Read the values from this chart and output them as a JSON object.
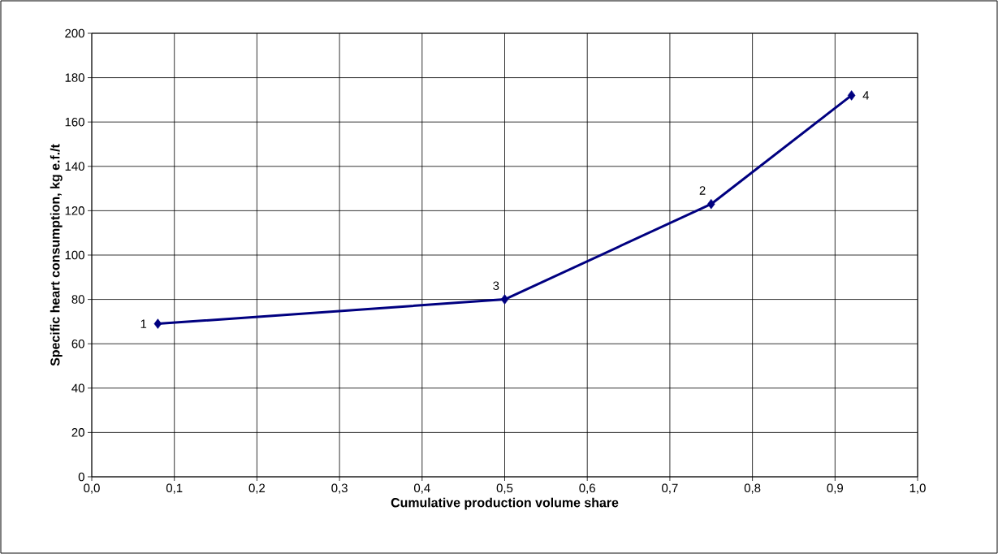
{
  "chart_data": {
    "type": "line",
    "xlabel": "Cumulative production volume share",
    "ylabel": "Specific heart consumption, kg e.f./t",
    "x": [
      0.08,
      0.5,
      0.75,
      0.92
    ],
    "series": [
      {
        "color": "#000080",
        "values": [
          69,
          80,
          123,
          172
        ]
      }
    ],
    "xlim": [
      0,
      1
    ],
    "xticks": [
      {
        "value": 0,
        "label": "0,0"
      },
      {
        "value": 0.1,
        "label": "0,1"
      },
      {
        "value": 0.2,
        "label": "0,2"
      },
      {
        "value": 0.3,
        "label": "0,3"
      },
      {
        "value": 0.4,
        "label": "0,4"
      },
      {
        "value": 0.5,
        "label": "0,5"
      },
      {
        "value": 0.6,
        "label": "0,6"
      },
      {
        "value": 0.7,
        "label": "0,7"
      },
      {
        "value": 0.8,
        "label": "0,8"
      },
      {
        "value": 0.9,
        "label": "0,9"
      },
      {
        "value": 1,
        "label": "1,0"
      }
    ],
    "ylim": [
      0,
      200
    ],
    "yticks": [
      0,
      20,
      40,
      60,
      80,
      100,
      120,
      140,
      160,
      180,
      200
    ],
    "annotations": [
      {
        "text": "1",
        "x": 0.08,
        "y": 69
      },
      {
        "text": "3",
        "x": 0.5,
        "y": 80
      },
      {
        "text": "2",
        "x": 0.75,
        "y": 123
      },
      {
        "text": "4",
        "x": 0.92,
        "y": 172
      }
    ],
    "grid": true,
    "marker": "diamond",
    "line_style": "solid"
  }
}
